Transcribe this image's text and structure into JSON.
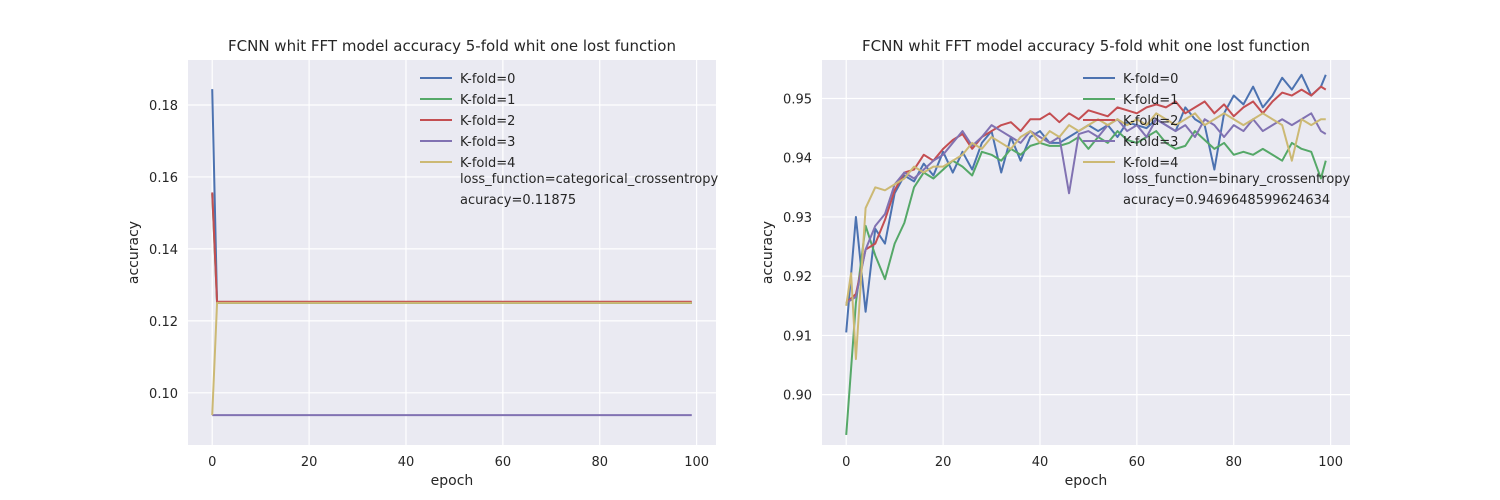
{
  "chart_data": [
    {
      "type": "line",
      "title": "FCNN whit FFT model accuracy 5-fold whit one lost function",
      "xlabel": "epoch",
      "ylabel": "accuracy",
      "xlim": [
        -5,
        104
      ],
      "ylim": [
        0.0855,
        0.1925
      ],
      "xticks": [
        0,
        20,
        40,
        60,
        80,
        100
      ],
      "yticks": [
        0.1,
        0.12,
        0.14,
        0.16,
        0.18
      ],
      "ytick_labels": [
        "0.10",
        "0.12",
        "0.14",
        "0.16",
        "0.18"
      ],
      "grid": true,
      "legend_position": "top-right",
      "annotations": [
        "loss_function=categorical_crossentropy",
        "acuracy=0.11875"
      ],
      "series": [
        {
          "name": "K-fold=0",
          "color": "#4c72b0",
          "x": [
            0,
            1,
            99
          ],
          "values": [
            0.1844,
            0.125,
            0.125
          ]
        },
        {
          "name": "K-fold=1",
          "color": "#55a868",
          "x": [
            0,
            1,
            99
          ],
          "values": [
            0.1553,
            0.125,
            0.125
          ]
        },
        {
          "name": "K-fold=2",
          "color": "#c44e52",
          "x": [
            0,
            1,
            99
          ],
          "values": [
            0.1557,
            0.1253,
            0.1253
          ]
        },
        {
          "name": "K-fold=3",
          "color": "#8172b2",
          "x": [
            0,
            99
          ],
          "values": [
            0.0938,
            0.0938
          ]
        },
        {
          "name": "K-fold=4",
          "color": "#ccb974",
          "x": [
            0,
            1,
            99
          ],
          "values": [
            0.0938,
            0.125,
            0.125
          ]
        }
      ]
    },
    {
      "type": "line",
      "title": "FCNN whit FFT model accuracy 5-fold whit one lost function",
      "xlabel": "epoch",
      "ylabel": "accuracy",
      "xlim": [
        -5,
        104
      ],
      "ylim": [
        0.8915,
        0.9565
      ],
      "xticks": [
        0,
        20,
        40,
        60,
        80,
        100
      ],
      "yticks": [
        0.9,
        0.91,
        0.92,
        0.93,
        0.94,
        0.95
      ],
      "ytick_labels": [
        "0.90",
        "0.91",
        "0.92",
        "0.93",
        "0.94",
        "0.95"
      ],
      "grid": true,
      "legend_position": "top-right",
      "annotations": [
        "loss_function=binary_crossentropy",
        "acuracy=0.9469648599624634"
      ],
      "series": [
        {
          "name": "K-fold=0",
          "color": "#4c72b0",
          "x": [
            0,
            2,
            4,
            6,
            8,
            10,
            12,
            14,
            16,
            18,
            20,
            22,
            24,
            26,
            28,
            30,
            32,
            34,
            36,
            38,
            40,
            42,
            44,
            46,
            48,
            50,
            52,
            54,
            56,
            58,
            60,
            62,
            64,
            66,
            68,
            70,
            72,
            74,
            76,
            78,
            80,
            82,
            84,
            86,
            88,
            90,
            92,
            94,
            96,
            98,
            99
          ],
          "values": [
            0.9105,
            0.93,
            0.914,
            0.928,
            0.9255,
            0.934,
            0.937,
            0.936,
            0.939,
            0.937,
            0.941,
            0.9375,
            0.941,
            0.938,
            0.9425,
            0.9445,
            0.9375,
            0.9435,
            0.9395,
            0.9435,
            0.9445,
            0.9425,
            0.9425,
            0.9435,
            0.9445,
            0.9455,
            0.9445,
            0.9455,
            0.9435,
            0.946,
            0.9455,
            0.945,
            0.9465,
            0.9455,
            0.9445,
            0.9485,
            0.9465,
            0.9455,
            0.938,
            0.9475,
            0.9505,
            0.949,
            0.952,
            0.9485,
            0.9505,
            0.9535,
            0.9515,
            0.954,
            0.9505,
            0.952,
            0.954
          ]
        },
        {
          "name": "K-fold=1",
          "color": "#55a868",
          "x": [
            0,
            2,
            4,
            6,
            8,
            10,
            12,
            14,
            16,
            18,
            20,
            22,
            24,
            26,
            28,
            30,
            32,
            34,
            36,
            38,
            40,
            42,
            44,
            46,
            48,
            50,
            52,
            54,
            56,
            58,
            60,
            62,
            64,
            66,
            68,
            70,
            72,
            74,
            76,
            78,
            80,
            82,
            84,
            86,
            88,
            90,
            92,
            94,
            96,
            98,
            99
          ],
          "values": [
            0.8932,
            0.9155,
            0.9285,
            0.9235,
            0.9195,
            0.9255,
            0.929,
            0.935,
            0.9375,
            0.9365,
            0.938,
            0.9395,
            0.9385,
            0.937,
            0.941,
            0.9405,
            0.9395,
            0.9415,
            0.9405,
            0.942,
            0.9425,
            0.942,
            0.942,
            0.9425,
            0.9435,
            0.9415,
            0.9435,
            0.9425,
            0.9445,
            0.943,
            0.9425,
            0.9435,
            0.9445,
            0.9425,
            0.9415,
            0.942,
            0.9445,
            0.943,
            0.9415,
            0.9425,
            0.9405,
            0.941,
            0.9405,
            0.9415,
            0.9405,
            0.9395,
            0.9425,
            0.9415,
            0.941,
            0.9365,
            0.9395
          ]
        },
        {
          "name": "K-fold=2",
          "color": "#c44e52",
          "x": [
            0,
            2,
            4,
            6,
            8,
            10,
            12,
            14,
            16,
            18,
            20,
            22,
            24,
            26,
            28,
            30,
            32,
            34,
            36,
            38,
            40,
            42,
            44,
            46,
            48,
            50,
            52,
            54,
            56,
            58,
            60,
            62,
            64,
            66,
            68,
            70,
            72,
            74,
            76,
            78,
            80,
            82,
            84,
            86,
            88,
            90,
            92,
            94,
            96,
            98,
            99
          ],
          "values": [
            0.9155,
            0.917,
            0.9245,
            0.9255,
            0.9295,
            0.9345,
            0.9375,
            0.938,
            0.9405,
            0.9395,
            0.9415,
            0.943,
            0.944,
            0.9415,
            0.9435,
            0.9445,
            0.9455,
            0.946,
            0.9445,
            0.9465,
            0.9465,
            0.9475,
            0.946,
            0.9475,
            0.9465,
            0.948,
            0.9475,
            0.947,
            0.9485,
            0.948,
            0.9475,
            0.9485,
            0.949,
            0.9485,
            0.9495,
            0.9475,
            0.9485,
            0.9495,
            0.9475,
            0.949,
            0.947,
            0.9485,
            0.9495,
            0.9475,
            0.9495,
            0.951,
            0.9505,
            0.9515,
            0.9505,
            0.952,
            0.9515
          ]
        },
        {
          "name": "K-fold=3",
          "color": "#8172b2",
          "x": [
            0,
            2,
            4,
            6,
            8,
            10,
            12,
            14,
            16,
            18,
            20,
            22,
            24,
            26,
            28,
            30,
            32,
            34,
            36,
            38,
            40,
            42,
            44,
            46,
            48,
            50,
            52,
            54,
            56,
            58,
            60,
            62,
            64,
            66,
            68,
            70,
            72,
            74,
            76,
            78,
            80,
            82,
            84,
            86,
            88,
            90,
            92,
            94,
            96,
            98,
            99
          ],
          "values": [
            0.9155,
            0.9165,
            0.9245,
            0.9285,
            0.9305,
            0.9355,
            0.9375,
            0.9365,
            0.938,
            0.9395,
            0.9405,
            0.9425,
            0.9445,
            0.942,
            0.9435,
            0.9455,
            0.9445,
            0.9435,
            0.9425,
            0.9445,
            0.9435,
            0.9425,
            0.9435,
            0.934,
            0.944,
            0.9445,
            0.9435,
            0.9455,
            0.9465,
            0.9445,
            0.9455,
            0.9435,
            0.9465,
            0.9455,
            0.9445,
            0.9455,
            0.9435,
            0.9465,
            0.9455,
            0.9435,
            0.9455,
            0.9445,
            0.9465,
            0.9445,
            0.9455,
            0.9465,
            0.9455,
            0.9465,
            0.9475,
            0.9445,
            0.944
          ]
        },
        {
          "name": "K-fold=4",
          "color": "#ccb974",
          "x": [
            0,
            1,
            2,
            4,
            6,
            8,
            10,
            12,
            14,
            16,
            18,
            20,
            22,
            24,
            26,
            28,
            30,
            32,
            34,
            36,
            38,
            40,
            42,
            44,
            46,
            48,
            50,
            52,
            54,
            56,
            58,
            60,
            62,
            64,
            66,
            68,
            70,
            72,
            74,
            76,
            78,
            80,
            82,
            84,
            86,
            88,
            90,
            92,
            94,
            96,
            98,
            99
          ],
          "values": [
            0.915,
            0.9205,
            0.906,
            0.9315,
            0.935,
            0.9345,
            0.9355,
            0.9365,
            0.9385,
            0.9375,
            0.9385,
            0.9385,
            0.9395,
            0.9405,
            0.9425,
            0.9415,
            0.9435,
            0.9425,
            0.9415,
            0.9435,
            0.9445,
            0.9425,
            0.9445,
            0.9435,
            0.9455,
            0.9445,
            0.9455,
            0.9465,
            0.9455,
            0.9465,
            0.9455,
            0.9465,
            0.9455,
            0.9475,
            0.9465,
            0.9455,
            0.9465,
            0.9475,
            0.9455,
            0.9465,
            0.9475,
            0.9465,
            0.9455,
            0.9465,
            0.9475,
            0.9465,
            0.9455,
            0.9395,
            0.9465,
            0.9455,
            0.9465,
            0.9465
          ]
        }
      ]
    }
  ]
}
